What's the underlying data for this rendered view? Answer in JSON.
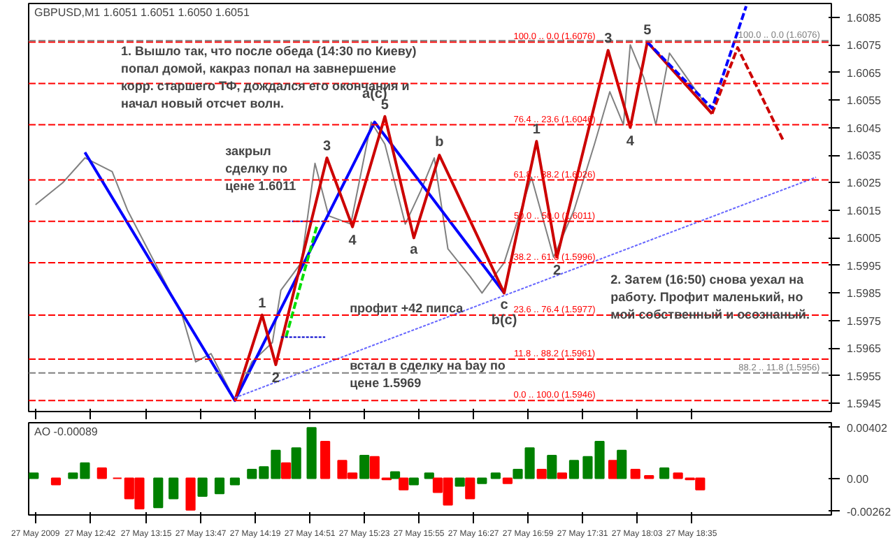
{
  "chart_data": [
    {
      "type": "line",
      "title": "GBPUSD,M1  1.6051 1.6051 1.6050 1.6051",
      "grid": false,
      "tick_labels": "y",
      "marker": "none",
      "xlim": [
        "2009-05-27T12:06",
        "2009-05-27T19:57"
      ],
      "ylim": [
        1.5942,
        1.609
      ],
      "xticks": [
        {
          "value": "2009-05-27T12:10",
          "label": null
        },
        {
          "value": "2009-05-27T12:42",
          "label": null
        },
        {
          "value": "2009-05-27T13:15",
          "label": null
        },
        {
          "value": "2009-05-27T13:47",
          "label": null
        },
        {
          "value": "2009-05-27T14:19",
          "label": null
        },
        {
          "value": "2009-05-27T14:51",
          "label": null
        },
        {
          "value": "2009-05-27T15:23",
          "label": null
        },
        {
          "value": "2009-05-27T15:55",
          "label": null
        },
        {
          "value": "2009-05-27T16:27",
          "label": null
        },
        {
          "value": "2009-05-27T16:59",
          "label": null
        },
        {
          "value": "2009-05-27T17:31",
          "label": null
        },
        {
          "value": "2009-05-27T18:03",
          "label": null
        },
        {
          "value": "2009-05-27T18:35",
          "label": null
        }
      ],
      "yticks": [
        1.5945,
        1.5955,
        1.5965,
        1.5975,
        1.5985,
        1.5995,
        1.6005,
        1.6015,
        1.6025,
        1.6035,
        1.6045,
        1.6055,
        1.6065,
        1.6075,
        1.6085
      ],
      "series": [
        {
          "color": "#808080",
          "x": [
            "2009-05-27T12:10",
            "2009-05-27T12:26",
            "2009-05-27T12:39",
            "2009-05-27T12:55",
            "2009-05-27T13:04",
            "2009-05-27T13:20",
            "2009-05-27T13:36",
            "2009-05-27T13:44",
            "2009-05-27T13:53",
            "2009-05-27T14:07",
            "2009-05-27T14:17",
            "2009-05-27T14:29",
            "2009-05-27T14:34",
            "2009-05-27T14:46",
            "2009-05-27T14:54",
            "2009-05-27T15:02",
            "2009-05-27T15:15",
            "2009-05-27T15:27",
            "2009-05-27T15:35",
            "2009-05-27T15:47",
            "2009-05-27T15:56",
            "2009-05-27T16:04",
            "2009-05-27T16:12",
            "2009-05-27T16:25",
            "2009-05-27T16:32",
            "2009-05-27T16:45",
            "2009-05-27T17:01",
            "2009-05-27T17:14",
            "2009-05-27T17:26",
            "2009-05-27T17:38",
            "2009-05-27T17:47",
            "2009-05-27T17:55",
            "2009-05-27T17:59",
            "2009-05-27T18:07",
            "2009-05-27T18:14",
            "2009-05-27T18:22",
            "2009-05-27T18:30",
            "2009-05-27T18:38",
            "2009-05-27T18:46"
          ],
          "values": [
            1.6017,
            1.6025,
            1.6034,
            1.6029,
            1.6015,
            1.5996,
            1.5977,
            1.596,
            1.5963,
            1.5946,
            1.596,
            1.5967,
            1.5986,
            1.5996,
            1.6032,
            1.6013,
            1.601,
            1.6047,
            1.6039,
            1.601,
            1.6022,
            1.6034,
            1.6001,
            1.5991,
            1.5985,
            1.5996,
            1.6027,
            1.5998,
            1.6015,
            1.6039,
            1.6058,
            1.6046,
            1.6075,
            1.6063,
            1.6046,
            1.6072,
            1.6065,
            1.6058,
            1.6051
          ]
        },
        {
          "color": "#0000ff",
          "x": [
            "2009-05-27T12:39",
            "2009-05-27T14:07",
            "2009-05-27T15:29",
            "2009-05-27T16:45"
          ],
          "values": [
            1.6036,
            1.5946,
            1.6047,
            1.5985
          ]
        },
        {
          "color": "#cc0000",
          "x": [
            "2009-05-27T14:07",
            "2009-05-27T14:23",
            "2009-05-27T14:31",
            "2009-05-27T15:01",
            "2009-05-27T15:16",
            "2009-05-27T15:35",
            "2009-05-27T15:52",
            "2009-05-27T16:07",
            "2009-05-27T16:45",
            "2009-05-27T17:04",
            "2009-05-27T17:16",
            "2009-05-27T17:46",
            "2009-05-27T17:59",
            "2009-05-27T18:09",
            "2009-05-27T18:47"
          ],
          "values": [
            1.5946,
            1.5977,
            1.5959,
            1.6034,
            1.6009,
            1.6049,
            1.6005,
            1.6035,
            1.5985,
            1.604,
            1.5998,
            1.6073,
            1.6045,
            1.6076,
            1.605
          ]
        },
        {
          "color": "#cc0000",
          "line_style": "dashed",
          "x": [
            "2009-05-27T18:47",
            "2009-05-27T19:02",
            "2009-05-27T19:29"
          ],
          "values": [
            1.605,
            1.6074,
            1.604
          ]
        },
        {
          "color": "#0000ff",
          "line_style": "dashed",
          "x": [
            "2009-05-27T18:09",
            "2009-05-27T18:47",
            "2009-05-27T19:07"
          ],
          "values": [
            1.6076,
            1.6052,
            1.6089
          ]
        },
        {
          "color": "#00dd00",
          "line_style": "dashed",
          "x": [
            "2009-05-27T14:37",
            "2009-05-27T14:55"
          ],
          "values": [
            1.5969,
            1.6009
          ]
        },
        {
          "color": "#0000cc",
          "line_style": "dotted",
          "x": [
            "2009-05-27T14:34",
            "2009-05-27T15:00"
          ],
          "values": [
            1.5969,
            1.5969
          ]
        },
        {
          "color": "#0000cc",
          "line_style": "dotted",
          "x": [
            "2009-05-27T14:38",
            "2009-05-27T15:00"
          ],
          "values": [
            1.6011,
            1.6011
          ]
        },
        {
          "color": "#6666ff",
          "line_style": "dotted",
          "x": [
            "2009-05-27T14:07",
            "2009-05-27T19:48"
          ],
          "values": [
            1.5947,
            1.6027
          ]
        }
      ],
      "ref_lines": [
        {
          "axis": "y",
          "value": 1.6076,
          "label": "100.0 .. 0.0 (1.6076)",
          "color": "#ff0000",
          "line_style": "dashed"
        },
        {
          "axis": "y",
          "value": 1.6061,
          "color": "#ff0000",
          "line_style": "dashed"
        },
        {
          "axis": "y",
          "value": 1.6046,
          "label": "76.4 .. 23.6 (1.6046)",
          "color": "#ff0000",
          "line_style": "dashed"
        },
        {
          "axis": "y",
          "value": 1.6026,
          "label": "61.8 .. 38.2 (1.6026)",
          "color": "#ff0000",
          "line_style": "dashed"
        },
        {
          "axis": "y",
          "value": 1.6011,
          "label": "50.0 .. 50.0 (1.6011)",
          "color": "#ff0000",
          "line_style": "dashed"
        },
        {
          "axis": "y",
          "value": 1.5996,
          "label": "38.2 .. 61.8 (1.5996)",
          "color": "#ff0000",
          "line_style": "dashed"
        },
        {
          "axis": "y",
          "value": 1.5977,
          "label": "23.6 .. 76.4 (1.5977)",
          "color": "#ff0000",
          "line_style": "dashed"
        },
        {
          "axis": "y",
          "value": 1.5961,
          "label": "11.8 .. 88.2 (1.5961)",
          "color": "#ff0000",
          "line_style": "dashed"
        },
        {
          "axis": "y",
          "value": 1.5946,
          "label": "0.0 .. 100.0 (1.5946)",
          "color": "#ff0000",
          "line_style": "dashed"
        },
        {
          "axis": "y",
          "value": 1.60765,
          "label": "100.0 .. 0.0 (1.6076)",
          "color": "#808080",
          "line_style": "dashed"
        },
        {
          "axis": "y",
          "value": 1.5956,
          "label": "88.2 .. 11.8 (1.5956)",
          "color": "#808080",
          "line_style": "dashed"
        }
      ],
      "annotations": [
        "1. Вышло так, что после обеда (14:30 по Киеву)\nпопал домой, какраз попал на завнершение\nкорр. старшего ТФ, дождался его окончания и\nначал новый отсчет волн.",
        "закрыл\nсделку по\nцене 1.6011",
        "профит +42 пипса",
        "встал в сделку на bay по\nцене 1.5969",
        "2. Затем (16:50) снова уехал на\nработу. Профит маленький, но\nмой собственный и осознаный.",
        {
          "text": "1",
          "x": "2009-05-27T14:23",
          "y": 1.5977
        },
        {
          "text": "2",
          "x": "2009-05-27T14:31",
          "y": 1.5959
        },
        {
          "text": "3",
          "x": "2009-05-27T15:01",
          "y": 1.6034
        },
        {
          "text": "4",
          "x": "2009-05-27T15:16",
          "y": 1.6009
        },
        {
          "text": "5",
          "x": "2009-05-27T15:35",
          "y": 1.6049
        },
        {
          "text": "a(c)",
          "x": "2009-05-27T15:29",
          "y": 1.6047
        },
        {
          "text": "a",
          "x": "2009-05-27T15:52",
          "y": 1.6005
        },
        {
          "text": "b",
          "x": "2009-05-27T16:07",
          "y": 1.6035
        },
        {
          "text": "c",
          "x": "2009-05-27T16:45",
          "y": 1.5985
        },
        {
          "text": "b(c)",
          "x": "2009-05-27T16:45",
          "y": 1.5985
        },
        {
          "text": "1",
          "x": "2009-05-27T17:04",
          "y": 1.604
        },
        {
          "text": "2",
          "x": "2009-05-27T17:16",
          "y": 1.5998
        },
        {
          "text": "3",
          "x": "2009-05-27T17:46",
          "y": 1.6073
        },
        {
          "text": "4",
          "x": "2009-05-27T17:59",
          "y": 1.6045
        },
        {
          "text": "5",
          "x": "2009-05-27T18:09",
          "y": 1.6076
        }
      ]
    },
    {
      "type": "bar",
      "title": "AO -0.00089",
      "grid": false,
      "xlim": [
        "2009-05-27T12:06",
        "2009-05-27T19:57"
      ],
      "ylim": [
        -0.0029,
        0.0044
      ],
      "xticks": [
        {
          "value": "2009-05-27T12:10",
          "label": "27 May 2009"
        },
        {
          "value": "2009-05-27T12:42",
          "label": "27 May 12:42"
        },
        {
          "value": "2009-05-27T13:15",
          "label": "27 May 13:15"
        },
        {
          "value": "2009-05-27T13:47",
          "label": "27 May 13:47"
        },
        {
          "value": "2009-05-27T14:19",
          "label": "27 May 14:19"
        },
        {
          "value": "2009-05-27T14:51",
          "label": "27 May 14:51"
        },
        {
          "value": "2009-05-27T15:23",
          "label": "27 May 15:23"
        },
        {
          "value": "2009-05-27T15:55",
          "label": "27 May 15:55"
        },
        {
          "value": "2009-05-27T16:27",
          "label": "27 May 16:27"
        },
        {
          "value": "2009-05-27T16:59",
          "label": "27 May 16:59"
        },
        {
          "value": "2009-05-27T17:31",
          "label": "27 May 17:31"
        },
        {
          "value": "2009-05-27T18:03",
          "label": "27 May 18:03"
        },
        {
          "value": "2009-05-27T18:35",
          "label": "27 May 18:35"
        }
      ],
      "yticks": [
        {
          "value": -0.00262,
          "label": "-0.00262"
        },
        {
          "value": 0,
          "label": "0.00"
        },
        {
          "value": 0.00402,
          "label": "0.00402"
        }
      ],
      "x": [
        "2009-05-27T12:09",
        "2009-05-27T12:22",
        "2009-05-27T12:32",
        "2009-05-27T12:39",
        "2009-05-27T12:49",
        "2009-05-27T12:58",
        "2009-05-27T13:05",
        "2009-05-27T13:11",
        "2009-05-27T13:22",
        "2009-05-27T13:31",
        "2009-05-27T13:41",
        "2009-05-27T13:48",
        "2009-05-27T13:58",
        "2009-05-27T14:07",
        "2009-05-27T14:17",
        "2009-05-27T14:24",
        "2009-05-27T14:31",
        "2009-05-27T14:37",
        "2009-05-27T14:43",
        "2009-05-27T14:52",
        "2009-05-27T15:00",
        "2009-05-27T15:10",
        "2009-05-27T15:16",
        "2009-05-27T15:23",
        "2009-05-27T15:29",
        "2009-05-27T15:36",
        "2009-05-27T15:41",
        "2009-05-27T15:46",
        "2009-05-27T15:52",
        "2009-05-27T16:01",
        "2009-05-27T16:06",
        "2009-05-27T16:12",
        "2009-05-27T16:19",
        "2009-05-27T16:25",
        "2009-05-27T16:32",
        "2009-05-27T16:40",
        "2009-05-27T16:47",
        "2009-05-27T16:53",
        "2009-05-27T17:00",
        "2009-05-27T17:07",
        "2009-05-27T17:13",
        "2009-05-27T17:19",
        "2009-05-27T17:26",
        "2009-05-27T17:34",
        "2009-05-27T17:41",
        "2009-05-27T17:49",
        "2009-05-27T17:54",
        "2009-05-27T18:02",
        "2009-05-27T18:10",
        "2009-05-27T18:19",
        "2009-05-27T18:27",
        "2009-05-27T18:34",
        "2009-05-27T18:40"
      ],
      "values": [
        0.0004,
        -0.0005,
        0.0004,
        0.0012,
        0.0008,
        0.0,
        -0.0016,
        -0.0024,
        -0.0023,
        -0.0016,
        -0.0025,
        -0.0014,
        -0.0012,
        -0.0005,
        0.0007,
        0.0009,
        0.0022,
        0.0012,
        0.0024,
        0.004,
        0.0029,
        0.0014,
        0.0004,
        0.0018,
        0.0017,
        -0.0001,
        0.0005,
        -0.0009,
        -0.0005,
        0.0004,
        -0.0011,
        -0.0021,
        -0.0006,
        -0.0016,
        -0.0004,
        0.0004,
        -0.0004,
        0.0007,
        0.0024,
        0.0007,
        0.0018,
        0.0004,
        0.0014,
        0.0017,
        0.0029,
        0.0014,
        0.0022,
        0.0007,
        0.0002,
        0.0008,
        0.0004,
        -0.0001,
        -0.0009
      ],
      "colors": [
        "#008000",
        "#ff0000",
        "#008000",
        "#008000",
        "#ff0000",
        "#ff0000",
        "#ff0000",
        "#ff0000",
        "#008000",
        "#008000",
        "#ff0000",
        "#008000",
        "#008000",
        "#008000",
        "#008000",
        "#008000",
        "#008000",
        "#ff0000",
        "#008000",
        "#008000",
        "#ff0000",
        "#ff0000",
        "#ff0000",
        "#008000",
        "#ff0000",
        "#ff0000",
        "#008000",
        "#ff0000",
        "#008000",
        "#008000",
        "#ff0000",
        "#ff0000",
        "#008000",
        "#ff0000",
        "#008000",
        "#008000",
        "#ff0000",
        "#008000",
        "#008000",
        "#ff0000",
        "#008000",
        "#ff0000",
        "#008000",
        "#008000",
        "#008000",
        "#ff0000",
        "#008000",
        "#ff0000",
        "#ff0000",
        "#008000",
        "#ff0000",
        "#ff0000",
        "#ff0000"
      ]
    }
  ]
}
